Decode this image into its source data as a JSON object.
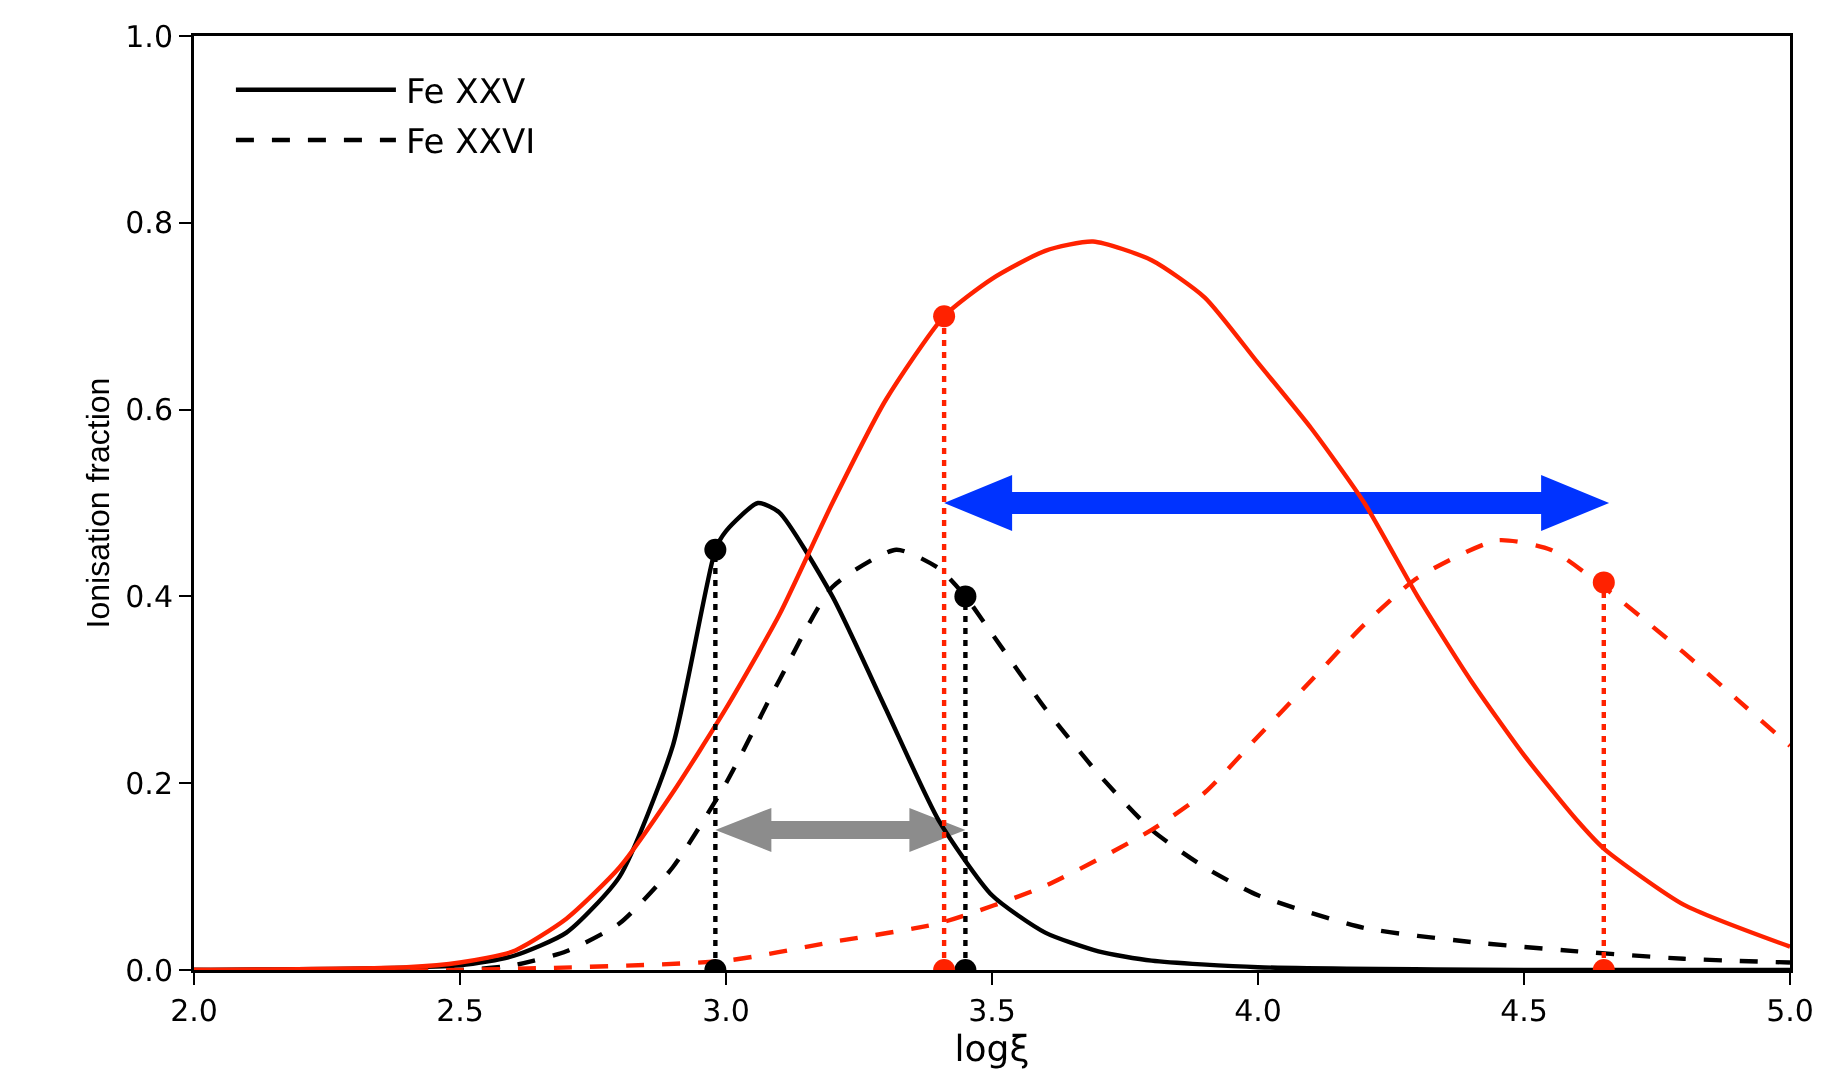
{
  "chart_data": {
    "type": "line",
    "xlabel": "logξ",
    "ylabel": "Ionisation fraction",
    "xlim": [
      2.0,
      5.0
    ],
    "ylim": [
      0.0,
      1.0
    ],
    "xticks": [
      {
        "value": 2.0,
        "label": "2.0"
      },
      {
        "value": 2.5,
        "label": "2.5"
      },
      {
        "value": 3.0,
        "label": "3.0"
      },
      {
        "value": 3.5,
        "label": "3.5"
      },
      {
        "value": 4.0,
        "label": "4.0"
      },
      {
        "value": 4.5,
        "label": "4.5"
      },
      {
        "value": 5.0,
        "label": "5.0"
      }
    ],
    "yticks": [
      {
        "value": 0,
        "label": "0.0"
      },
      {
        "value": 0.2,
        "label": "0.2"
      },
      {
        "value": 0.4,
        "label": "0.4"
      },
      {
        "value": 0.6,
        "label": "0.6"
      },
      {
        "value": 0.8,
        "label": "0.8"
      },
      {
        "value": 1.0,
        "label": "1.0"
      }
    ],
    "grid": false,
    "legend": "top left",
    "marker": "none",
    "series": [
      {
        "name": "Fe XXV",
        "color": "#000000",
        "line_style": "solid",
        "x": [
          2.0,
          2.5,
          2.6,
          2.7,
          2.8,
          2.9,
          2.98,
          3.0,
          3.06,
          3.1,
          3.2,
          3.3,
          3.4,
          3.5,
          3.6,
          3.7,
          3.8,
          4.0,
          4.5,
          5.0
        ],
        "values": [
          0,
          0.005,
          0.015,
          0.04,
          0.1,
          0.24,
          0.45,
          0.47,
          0.5,
          0.49,
          0.4,
          0.28,
          0.16,
          0.08,
          0.04,
          0.02,
          0.01,
          0.003,
          0,
          0
        ]
      },
      {
        "name": "Fe XXVI",
        "color": "#000000",
        "line_style": "dashed",
        "x": [
          2.0,
          2.5,
          2.6,
          2.7,
          2.8,
          2.9,
          3.0,
          3.1,
          3.2,
          3.32,
          3.4,
          3.45,
          3.5,
          3.6,
          3.7,
          3.8,
          3.9,
          4.0,
          4.2,
          4.4,
          4.6,
          4.8,
          5.0
        ],
        "values": [
          0,
          0,
          0.005,
          0.02,
          0.05,
          0.11,
          0.2,
          0.31,
          0.41,
          0.45,
          0.43,
          0.4,
          0.36,
          0.28,
          0.21,
          0.15,
          0.11,
          0.08,
          0.045,
          0.03,
          0.02,
          0.012,
          0.008
        ]
      },
      {
        "color": "#ff2200",
        "line_style": "solid",
        "x": [
          2.0,
          2.4,
          2.5,
          2.6,
          2.7,
          2.8,
          2.9,
          3.0,
          3.1,
          3.2,
          3.3,
          3.41,
          3.5,
          3.6,
          3.69,
          3.8,
          3.9,
          4.0,
          4.1,
          4.2,
          4.3,
          4.4,
          4.5,
          4.6,
          4.65,
          4.8,
          5.0
        ],
        "values": [
          0,
          0.003,
          0.008,
          0.02,
          0.055,
          0.11,
          0.19,
          0.28,
          0.38,
          0.5,
          0.61,
          0.7,
          0.74,
          0.77,
          0.78,
          0.76,
          0.72,
          0.65,
          0.58,
          0.5,
          0.4,
          0.31,
          0.23,
          0.16,
          0.13,
          0.07,
          0.025
        ]
      },
      {
        "color": "#ff2200",
        "line_style": "dashed",
        "x": [
          2.0,
          2.5,
          3.0,
          3.2,
          3.4,
          3.6,
          3.8,
          3.9,
          4.0,
          4.1,
          4.2,
          4.3,
          4.45,
          4.55,
          4.65,
          4.8,
          4.9,
          5.0
        ],
        "values": [
          0,
          0,
          0.01,
          0.03,
          0.05,
          0.09,
          0.15,
          0.19,
          0.25,
          0.31,
          0.37,
          0.42,
          0.46,
          0.45,
          0.41,
          0.34,
          0.29,
          0.24
        ]
      },
      {
        "color": "#000000",
        "line_style": "dotted",
        "marker": "circle",
        "x": [
          2.98,
          2.98
        ],
        "values": [
          0,
          0.45
        ]
      },
      {
        "color": "#000000",
        "line_style": "dotted",
        "marker": "circle",
        "x": [
          3.45,
          3.45
        ],
        "values": [
          0,
          0.4
        ]
      },
      {
        "color": "#ff2200",
        "line_style": "dotted",
        "marker": "circle",
        "x": [
          3.41,
          3.41
        ],
        "values": [
          0,
          0.7
        ]
      },
      {
        "color": "#ff2200",
        "line_style": "dotted",
        "marker": "circle",
        "x": [
          4.65,
          4.65
        ],
        "values": [
          0,
          0.415
        ]
      }
    ]
  }
}
